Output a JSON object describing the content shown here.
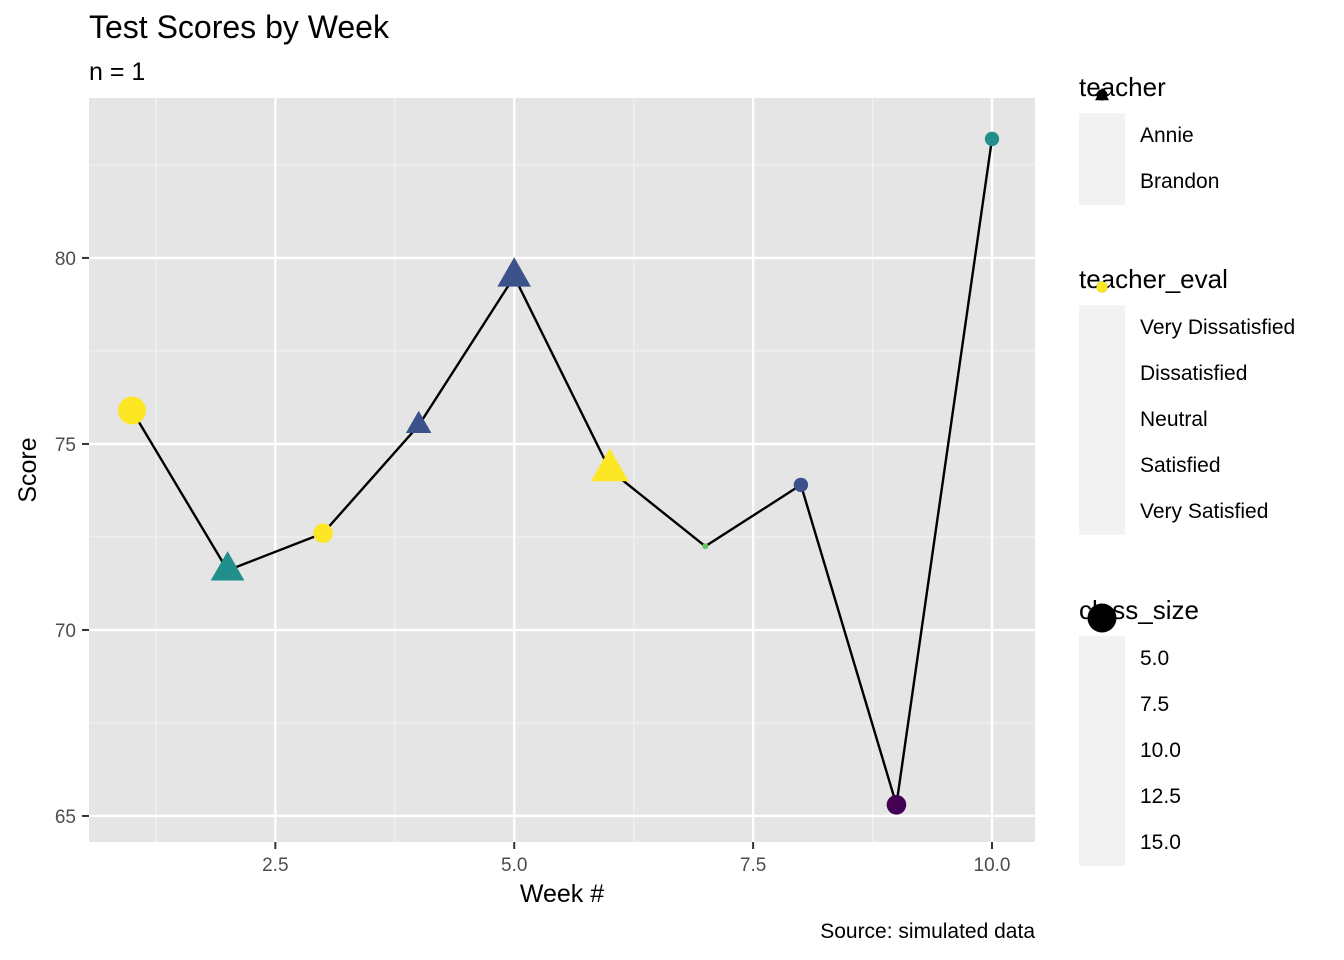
{
  "chart_data": {
    "type": "scatter",
    "title": "Test Scores by Week",
    "subtitle": "n = 1",
    "caption": "Source: simulated data",
    "xlabel": "Week #",
    "ylabel": "Score",
    "xlim": [
      0.55,
      10.45
    ],
    "ylim": [
      64.3,
      84.3
    ],
    "xticks": [
      2.5,
      5.0,
      7.5,
      10.0
    ],
    "xtick_labels": [
      "2.5",
      "5.0",
      "7.5",
      "10.0"
    ],
    "yticks": [
      65,
      70,
      75,
      80
    ],
    "ytick_labels": [
      "65",
      "70",
      "75",
      "80"
    ],
    "grid": true,
    "line_connects_points": true,
    "points": [
      {
        "week": 1,
        "score": 75.9,
        "teacher": "Annie",
        "teacher_eval": "Very Satisfied",
        "class_size": 14.5
      },
      {
        "week": 2,
        "score": 71.6,
        "teacher": "Brandon",
        "teacher_eval": "Neutral",
        "class_size": 13.5
      },
      {
        "week": 3,
        "score": 72.6,
        "teacher": "Annie",
        "teacher_eval": "Very Satisfied",
        "class_size": 10.5
      },
      {
        "week": 4,
        "score": 75.5,
        "teacher": "Brandon",
        "teacher_eval": "Dissatisfied",
        "class_size": 10.5
      },
      {
        "week": 5,
        "score": 79.5,
        "teacher": "Brandon",
        "teacher_eval": "Dissatisfied",
        "class_size": 13.5
      },
      {
        "week": 6,
        "score": 74.3,
        "teacher": "Brandon",
        "teacher_eval": "Very Satisfied",
        "class_size": 15.0
      },
      {
        "week": 7,
        "score": 72.25,
        "teacher": "Annie",
        "teacher_eval": "Satisfied",
        "class_size": 4.0
      },
      {
        "week": 8,
        "score": 73.9,
        "teacher": "Annie",
        "teacher_eval": "Dissatisfied",
        "class_size": 8.0
      },
      {
        "week": 9,
        "score": 65.3,
        "teacher": "Annie",
        "teacher_eval": "Very Dissatisfied",
        "class_size": 10.5
      },
      {
        "week": 10,
        "score": 83.2,
        "teacher": "Annie",
        "teacher_eval": "Neutral",
        "class_size": 8.0
      }
    ],
    "legends": {
      "teacher": {
        "title": "teacher",
        "entries": [
          {
            "label": "Annie",
            "shape": "circle"
          },
          {
            "label": "Brandon",
            "shape": "triangle"
          }
        ]
      },
      "teacher_eval": {
        "title": "teacher_eval",
        "entries": [
          {
            "label": "Very Dissatisfied",
            "color": "#440154"
          },
          {
            "label": "Dissatisfied",
            "color": "#3b528b"
          },
          {
            "label": "Neutral",
            "color": "#21908c"
          },
          {
            "label": "Satisfied",
            "color": "#5dc863"
          },
          {
            "label": "Very Satisfied",
            "color": "#fde725"
          }
        ]
      },
      "class_size": {
        "title": "class_size",
        "entries": [
          {
            "label": "5.0",
            "value": 5.0
          },
          {
            "label": "7.5",
            "value": 7.5
          },
          {
            "label": "10.0",
            "value": 10.0
          },
          {
            "label": "12.5",
            "value": 12.5
          },
          {
            "label": "15.0",
            "value": 15.0
          }
        ]
      }
    },
    "colors": {
      "panel_background": "#e5e5e5",
      "grid_major": "#ffffff",
      "grid_minor": "#f2f2f2",
      "line": "#000000",
      "axis_text": "#4d4d4d"
    }
  }
}
